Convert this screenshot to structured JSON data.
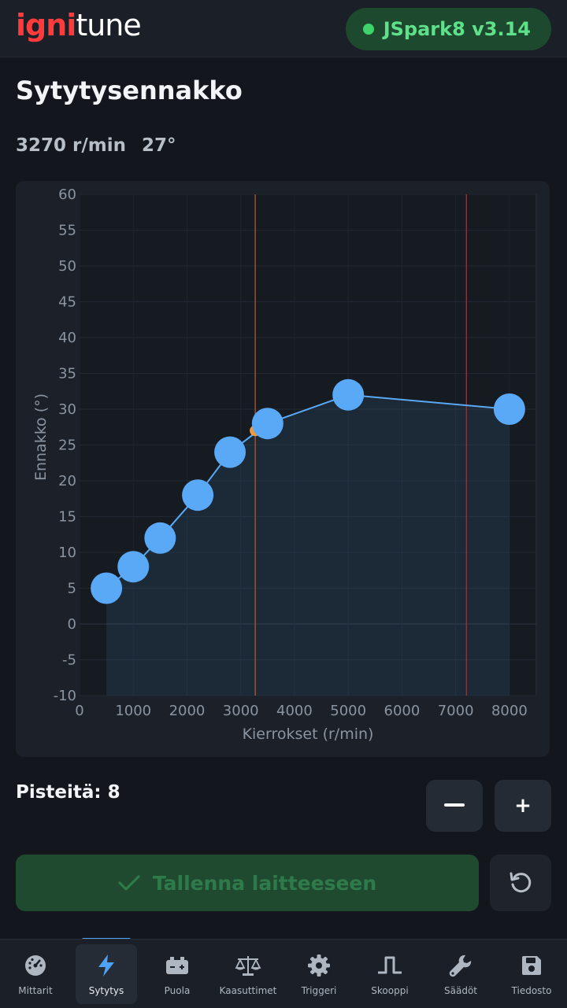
{
  "header": {
    "logo_part1": "igni",
    "logo_part2": "tune",
    "device_label": "JSpark8 v3.14",
    "device_status_color": "#3ed36b"
  },
  "page": {
    "title": "Sytytysennakko",
    "rpm_readout": "3270 r/min",
    "advance_readout": "27°"
  },
  "chart_data": {
    "type": "line",
    "xlabel": "Kierrokset (r/min)",
    "ylabel": "Ennakko (°)",
    "xlim": [
      0,
      8500
    ],
    "ylim": [
      -10,
      60
    ],
    "x_ticks": [
      0,
      1000,
      2000,
      3000,
      4000,
      5000,
      6000,
      7000,
      8000
    ],
    "y_ticks": [
      60,
      55,
      50,
      45,
      40,
      35,
      30,
      25,
      20,
      15,
      10,
      5,
      0,
      -5,
      -10
    ],
    "grid": true,
    "series": [
      {
        "x": [
          500,
          1000,
          1500,
          2200,
          2800,
          3500,
          5000,
          8000
        ],
        "y": [
          5,
          8,
          12,
          18,
          24,
          28,
          32,
          30
        ]
      }
    ],
    "current_point": {
      "x": 3270,
      "y": 27
    },
    "marker_lines": [
      {
        "x": 3270,
        "color": "#a35a3e"
      },
      {
        "x": 7200,
        "color": "#8a3a36"
      }
    ],
    "line_color": "#5aa9f7",
    "current_color": "#f39a3c"
  },
  "points": {
    "label": "Pisteitä: 8",
    "minus_label": "—",
    "plus_label": "+"
  },
  "actions": {
    "save_label": "Tallenna laitteeseen"
  },
  "nav": {
    "items": [
      {
        "label": "Mittarit",
        "icon": "gauge-icon"
      },
      {
        "label": "Sytytys",
        "icon": "bolt-icon"
      },
      {
        "label": "Puola",
        "icon": "battery-icon"
      },
      {
        "label": "Kaasuttimet",
        "icon": "scale-icon"
      },
      {
        "label": "Triggeri",
        "icon": "gear-icon"
      },
      {
        "label": "Skooppi",
        "icon": "pulse-icon"
      },
      {
        "label": "Säädöt",
        "icon": "wrench-icon"
      },
      {
        "label": "Tiedosto",
        "icon": "save-icon"
      }
    ]
  }
}
